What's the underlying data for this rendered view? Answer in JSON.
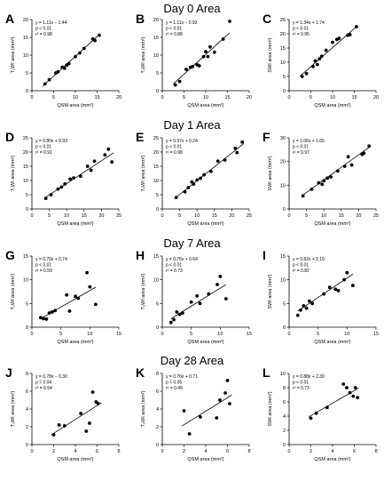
{
  "rows": [
    {
      "title": "Day 0 Area"
    },
    {
      "title": "Day 1 Area"
    },
    {
      "title": "Day 7 Area"
    },
    {
      "title": "Day 28 Area"
    }
  ],
  "chart_data": [
    {
      "type": "scatter",
      "panel": "A",
      "row_title": "Day 0 Area",
      "xlabel": "QSM area (mm²)",
      "ylabel": "T₁WI area (mm²)",
      "xlim": [
        0,
        20
      ],
      "ylim": [
        0,
        20
      ],
      "xticks": [
        "0",
        "5",
        "10",
        "15",
        "20"
      ],
      "yticks": [
        "0",
        "5",
        "10",
        "15",
        "20"
      ],
      "stats": [
        "y = 1.11x − 1.44",
        "p < 0.01",
        "r² = 0.98"
      ],
      "fit": {
        "slope": 1.11,
        "intercept": -1.44,
        "x_range": [
          2.5,
          15.5
        ]
      },
      "points": [
        [
          3,
          1.9
        ],
        [
          4,
          3.1
        ],
        [
          5.5,
          5
        ],
        [
          6,
          5.3
        ],
        [
          7,
          6.6
        ],
        [
          7.5,
          6.3
        ],
        [
          8,
          7.2
        ],
        [
          8.5,
          7.6
        ],
        [
          10,
          9.6
        ],
        [
          11,
          10.6
        ],
        [
          12,
          11.9
        ],
        [
          14,
          14.6
        ],
        [
          14.5,
          14.1
        ],
        [
          15.5,
          15.6
        ]
      ]
    },
    {
      "type": "scatter",
      "panel": "B",
      "row_title": "Day 0 Area",
      "xlabel": "QSM area (mm²)",
      "ylabel": "T₂WI area (mm²)",
      "xlim": [
        0,
        20
      ],
      "ylim": [
        0,
        20
      ],
      "xticks": [
        "0",
        "5",
        "10",
        "15",
        "20"
      ],
      "yticks": [
        "0",
        "5",
        "10",
        "15",
        "20"
      ],
      "stats": [
        "y = 1.11x − 0.92",
        "p < 0.01",
        "r² = 0.88"
      ],
      "fit": {
        "slope": 1.11,
        "intercept": -0.92,
        "x_range": [
          2.5,
          15.5
        ]
      },
      "points": [
        [
          3,
          1.6
        ],
        [
          4,
          2.6
        ],
        [
          5.5,
          6
        ],
        [
          6.5,
          6.6
        ],
        [
          7,
          6.8
        ],
        [
          8,
          7.3
        ],
        [
          8.5,
          7
        ],
        [
          9.5,
          9.6
        ],
        [
          10,
          11
        ],
        [
          10.5,
          9.6
        ],
        [
          11,
          12.3
        ],
        [
          12,
          10.8
        ],
        [
          14,
          14.5
        ],
        [
          15.5,
          19.5
        ]
      ]
    },
    {
      "type": "scatter",
      "panel": "C",
      "row_title": "Day 0 Area",
      "xlabel": "QSM area (mm²)",
      "ylabel": "SWI area (mm²)",
      "xlim": [
        0,
        20
      ],
      "ylim": [
        0,
        25
      ],
      "xticks": [
        "0",
        "5",
        "10",
        "15",
        "20"
      ],
      "yticks": [
        "0",
        "5",
        "10",
        "15",
        "20",
        "25"
      ],
      "stats": [
        "y = 1.34x + 1.74",
        "p < 0.01",
        "r² = 0.95"
      ],
      "fit": {
        "slope": 1.34,
        "intercept": 1.74,
        "x_range": [
          2.5,
          15.5
        ]
      },
      "points": [
        [
          3,
          5
        ],
        [
          4,
          6
        ],
        [
          5.5,
          8.5
        ],
        [
          6,
          10.5
        ],
        [
          6.5,
          9.2
        ],
        [
          7,
          11.2
        ],
        [
          7.5,
          12.1
        ],
        [
          8.5,
          14.2
        ],
        [
          10,
          17
        ],
        [
          11,
          18
        ],
        [
          11.5,
          18.4
        ],
        [
          13.5,
          19.5
        ],
        [
          14,
          19.7
        ],
        [
          15.5,
          22.5
        ]
      ]
    },
    {
      "type": "scatter",
      "panel": "D",
      "row_title": "Day 1 Area",
      "xlabel": "QSM area (mm²)",
      "ylabel": "T₁WI area (mm²)",
      "xlim": [
        0,
        25
      ],
      "ylim": [
        0,
        25
      ],
      "xticks": [
        "0",
        "5",
        "10",
        "15",
        "20",
        "25"
      ],
      "yticks": [
        "0",
        "5",
        "10",
        "15",
        "20",
        "25"
      ],
      "stats": [
        "y = 0.80x + 0.93",
        "p < 0.01",
        "r² = 0.91"
      ],
      "fit": {
        "slope": 0.8,
        "intercept": 0.93,
        "x_range": [
          3.5,
          23.5
        ]
      },
      "points": [
        [
          4,
          3.7
        ],
        [
          5.5,
          5
        ],
        [
          7.5,
          7
        ],
        [
          8.5,
          7.7
        ],
        [
          9.5,
          8.8
        ],
        [
          11,
          10.5
        ],
        [
          12,
          10.9
        ],
        [
          14,
          11.5
        ],
        [
          16,
          15
        ],
        [
          17,
          13.6
        ],
        [
          18,
          16.8
        ],
        [
          21,
          19
        ],
        [
          22,
          21
        ],
        [
          23,
          16.5
        ]
      ]
    },
    {
      "type": "scatter",
      "panel": "E",
      "row_title": "Day 1 Area",
      "xlabel": "QSM area (mm²)",
      "ylabel": "T₂WI area (mm²)",
      "xlim": [
        0,
        25
      ],
      "ylim": [
        0,
        25
      ],
      "xticks": [
        "0",
        "5",
        "10",
        "15",
        "20",
        "25"
      ],
      "yticks": [
        "0",
        "5",
        "10",
        "15",
        "20",
        "25"
      ],
      "stats": [
        "y = 0.97x + 0.24",
        "p < 0.01",
        "r² = 0.98"
      ],
      "fit": {
        "slope": 0.97,
        "intercept": 0.24,
        "x_range": [
          3.5,
          23.5
        ]
      },
      "points": [
        [
          4,
          4
        ],
        [
          6.5,
          6
        ],
        [
          7.5,
          7.5
        ],
        [
          8.5,
          9.5
        ],
        [
          9,
          8.7
        ],
        [
          10,
          10.2
        ],
        [
          11,
          10.8
        ],
        [
          12,
          12
        ],
        [
          14,
          13.2
        ],
        [
          16,
          16.8
        ],
        [
          18,
          17.2
        ],
        [
          21,
          21.3
        ],
        [
          21.5,
          19.8
        ],
        [
          23,
          23.5
        ]
      ]
    },
    {
      "type": "scatter",
      "panel": "F",
      "row_title": "Day 1 Area",
      "xlabel": "QSM area (mm²)",
      "ylabel": "SWI area (mm²)",
      "xlim": [
        0,
        25
      ],
      "ylim": [
        0,
        30
      ],
      "xticks": [
        "0",
        "5",
        "10",
        "15",
        "20",
        "25"
      ],
      "yticks": [
        "0",
        "10",
        "20",
        "30"
      ],
      "stats": [
        "y = 1.06x + 1.65",
        "p < 0.01",
        "r² = 0.97"
      ],
      "fit": {
        "slope": 1.06,
        "intercept": 1.65,
        "x_range": [
          3.5,
          23.5
        ]
      },
      "points": [
        [
          4,
          5.5
        ],
        [
          6.5,
          8.3
        ],
        [
          8.5,
          11
        ],
        [
          9.5,
          10.4
        ],
        [
          10,
          11.9
        ],
        [
          11,
          13
        ],
        [
          12,
          13.5
        ],
        [
          14,
          16
        ],
        [
          16,
          18
        ],
        [
          17,
          22
        ],
        [
          18,
          18.5
        ],
        [
          21,
          23
        ],
        [
          21.5,
          23.5
        ],
        [
          23,
          26.5
        ]
      ]
    },
    {
      "type": "scatter",
      "panel": "G",
      "row_title": "Day 7 Area",
      "xlabel": "QSM area (mm²)",
      "ylabel": "T₁WI area (mm²)",
      "xlim": [
        0,
        15
      ],
      "ylim": [
        0,
        15
      ],
      "xticks": [
        "0",
        "5",
        "10",
        "15"
      ],
      "yticks": [
        "0",
        "5",
        "10",
        "15"
      ],
      "stats": [
        "y = 0.70x + 0.74",
        "p < 0.01",
        "r² = 0.59"
      ],
      "fit": {
        "slope": 0.7,
        "intercept": 0.74,
        "x_range": [
          1.5,
          11
        ]
      },
      "points": [
        [
          1.5,
          2
        ],
        [
          2,
          1.8
        ],
        [
          2.5,
          1.7
        ],
        [
          3,
          3
        ],
        [
          3.5,
          3.2
        ],
        [
          4,
          3.5
        ],
        [
          6,
          6.8
        ],
        [
          6.5,
          3.4
        ],
        [
          7.5,
          6.5
        ],
        [
          8,
          6.1
        ],
        [
          9.5,
          11.5
        ],
        [
          10,
          8.5
        ],
        [
          11,
          4.8
        ]
      ]
    },
    {
      "type": "scatter",
      "panel": "H",
      "row_title": "Day 7 Area",
      "xlabel": "QSM area (mm²)",
      "ylabel": "T₂WI area (mm²)",
      "xlim": [
        0,
        15
      ],
      "ylim": [
        0,
        15
      ],
      "xticks": [
        "0",
        "5",
        "10",
        "15"
      ],
      "yticks": [
        "0",
        "5",
        "10",
        "15"
      ],
      "stats": [
        "y = 0.76x + 0.64",
        "p < 0.01",
        "r² = 0.73"
      ],
      "fit": {
        "slope": 0.76,
        "intercept": 0.64,
        "x_range": [
          1.5,
          11
        ]
      },
      "points": [
        [
          1.5,
          1
        ],
        [
          2,
          1.6
        ],
        [
          2.5,
          3.2
        ],
        [
          3,
          2.7
        ],
        [
          3.5,
          3
        ],
        [
          5,
          5.3
        ],
        [
          6,
          6.6
        ],
        [
          6.5,
          5
        ],
        [
          8,
          7
        ],
        [
          9.5,
          9
        ],
        [
          10,
          10.7
        ],
        [
          11,
          6
        ]
      ]
    },
    {
      "type": "scatter",
      "panel": "I",
      "row_title": "Day 7 Area",
      "xlabel": "QSM area (mm²)",
      "ylabel": "SWI area (mm²)",
      "xlim": [
        0,
        15
      ],
      "ylim": [
        0,
        15
      ],
      "xticks": [
        "0",
        "5",
        "10",
        "15"
      ],
      "yticks": [
        "0",
        "5",
        "10",
        "15"
      ],
      "stats": [
        "y = 0.82x + 2.16",
        "p < 0.01",
        "r² = 0.82"
      ],
      "fit": {
        "slope": 0.82,
        "intercept": 2.16,
        "x_range": [
          1.5,
          11
        ]
      },
      "points": [
        [
          1.5,
          2.5
        ],
        [
          2,
          3.6
        ],
        [
          2.5,
          4.5
        ],
        [
          3,
          4
        ],
        [
          3.5,
          5.5
        ],
        [
          4,
          5
        ],
        [
          6,
          7
        ],
        [
          7,
          8.4
        ],
        [
          8,
          8
        ],
        [
          8.5,
          7.7
        ],
        [
          9.5,
          10
        ],
        [
          10,
          11.5
        ],
        [
          11,
          8.8
        ]
      ]
    },
    {
      "type": "scatter",
      "panel": "J",
      "row_title": "Day 28 Area",
      "xlabel": "QSM area (mm²)",
      "ylabel": "T₁WI area (mm²)",
      "xlim": [
        0,
        8
      ],
      "ylim": [
        0,
        8
      ],
      "xticks": [
        "0",
        "2",
        "4",
        "6",
        "8"
      ],
      "yticks": [
        "0",
        "2",
        "4",
        "6",
        "8"
      ],
      "stats": [
        "y = 0.78x − 0.30",
        "p = 0.04",
        "r² = 0.54"
      ],
      "fit": {
        "slope": 0.78,
        "intercept": -0.3,
        "x_range": [
          1.8,
          6.4
        ]
      },
      "points": [
        [
          2,
          1.1
        ],
        [
          2.5,
          2.2
        ],
        [
          3,
          2.1
        ],
        [
          4.5,
          3.5
        ],
        [
          5,
          1.5
        ],
        [
          5.3,
          2.4
        ],
        [
          5.6,
          5.9
        ],
        [
          5.9,
          4.8
        ],
        [
          6.1,
          4.6
        ]
      ]
    },
    {
      "type": "scatter",
      "panel": "K",
      "row_title": "Day 28 Area",
      "xlabel": "QSM area (mm²)",
      "ylabel": "T₂WI area (mm²)",
      "xlim": [
        0,
        8
      ],
      "ylim": [
        0,
        8
      ],
      "xticks": [
        "0",
        "2",
        "4",
        "6",
        "8"
      ],
      "yticks": [
        "0",
        "2",
        "4",
        "6",
        "8"
      ],
      "stats": [
        "y = 0.76x + 0.71",
        "p = 0.05",
        "r² = 0.49"
      ],
      "fit": {
        "slope": 0.76,
        "intercept": 0.71,
        "x_range": [
          1.8,
          6.4
        ]
      },
      "points": [
        [
          2,
          3.8
        ],
        [
          2.5,
          1.2
        ],
        [
          3.5,
          3.1
        ],
        [
          5,
          3
        ],
        [
          5.3,
          5
        ],
        [
          5.8,
          5.8
        ],
        [
          6,
          7.2
        ],
        [
          6.2,
          4.6
        ]
      ]
    },
    {
      "type": "scatter",
      "panel": "L",
      "row_title": "Day 28 Area",
      "xlabel": "QSM area (mm²)",
      "ylabel": "SWI area (mm²)",
      "xlim": [
        0,
        8
      ],
      "ylim": [
        0,
        10
      ],
      "xticks": [
        "0",
        "2",
        "4",
        "6",
        "8"
      ],
      "yticks": [
        "0",
        "2",
        "4",
        "6",
        "8",
        "10"
      ],
      "stats": [
        "y = 0.88x + 2.30",
        "p < 0.01",
        "r² = 0.73"
      ],
      "fit": {
        "slope": 0.88,
        "intercept": 2.3,
        "x_range": [
          1.8,
          6.4
        ]
      },
      "points": [
        [
          2,
          3.7
        ],
        [
          2.5,
          4.4
        ],
        [
          3.5,
          5.2
        ],
        [
          5,
          8.5
        ],
        [
          5.3,
          8
        ],
        [
          5.6,
          7.3
        ],
        [
          5.9,
          6.8
        ],
        [
          6.1,
          8
        ],
        [
          6.3,
          6.6
        ]
      ]
    }
  ]
}
